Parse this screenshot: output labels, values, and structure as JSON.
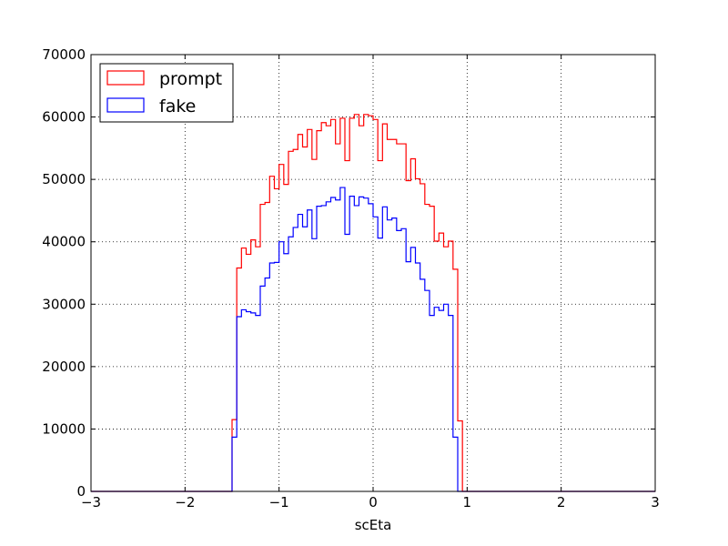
{
  "chart_data": {
    "type": "histogram",
    "xlabel": "scEta",
    "ylabel": "",
    "title": "",
    "xlim": [
      -3,
      3
    ],
    "ylim": [
      0,
      70000
    ],
    "xticks": [
      -3,
      -2,
      -1,
      0,
      1,
      2,
      3
    ],
    "xtick_labels": [
      "−3",
      "−2",
      "−1",
      "0",
      "1",
      "2",
      "3"
    ],
    "yticks": [
      0,
      10000,
      20000,
      30000,
      40000,
      50000,
      60000,
      70000
    ],
    "ytick_labels": [
      "0",
      "10000",
      "20000",
      "30000",
      "40000",
      "50000",
      "60000",
      "70000"
    ],
    "grid": true,
    "legend_position": "top-left",
    "bin_edges": [
      -3.0,
      -2.95,
      -2.9,
      -2.85,
      -2.8,
      -2.75,
      -2.7,
      -2.65,
      -2.6,
      -2.55,
      -2.5,
      -2.45,
      -2.4,
      -2.35,
      -2.3,
      -2.25,
      -2.2,
      -2.15,
      -2.1,
      -2.05,
      -2.0,
      -1.95,
      -1.9,
      -1.85,
      -1.8,
      -1.75,
      -1.7,
      -1.65,
      -1.6,
      -1.55,
      -1.5,
      -1.45,
      -1.4,
      -1.35,
      -1.3,
      -1.25,
      -1.2,
      -1.15,
      -1.1,
      -1.05,
      -1.0,
      -0.95,
      -0.9,
      -0.85,
      -0.8,
      -0.75,
      -0.7,
      -0.65,
      -0.6,
      -0.55,
      -0.5,
      -0.45,
      -0.4,
      -0.35,
      -0.3,
      -0.25,
      -0.2,
      -0.15,
      -0.1,
      -0.05,
      0.0,
      0.05,
      0.1,
      0.15,
      0.2,
      0.25,
      0.3,
      0.35,
      0.4,
      0.45,
      0.5,
      0.55,
      0.6,
      0.65,
      0.7,
      0.75,
      0.8,
      0.85,
      0.9,
      0.95,
      1.0,
      1.05,
      1.1,
      1.15,
      1.2,
      1.25,
      1.3,
      1.35,
      1.4,
      1.45,
      1.5,
      1.55,
      1.6,
      1.65,
      1.7,
      1.75,
      1.8,
      1.85,
      1.9,
      1.95,
      2.0,
      2.05,
      2.1,
      2.15,
      2.2,
      2.25,
      2.3,
      2.35,
      2.4,
      2.45,
      2.5,
      2.55,
      2.6,
      2.65,
      2.7,
      2.75,
      2.8,
      2.85,
      2.9,
      2.95,
      3.0
    ],
    "series": [
      {
        "name": "prompt",
        "color": "#ff0000",
        "values": [
          0,
          0,
          0,
          0,
          0,
          0,
          0,
          0,
          0,
          0,
          0,
          0,
          0,
          0,
          0,
          0,
          0,
          0,
          0,
          0,
          0,
          0,
          0,
          0,
          0,
          0,
          0,
          0,
          0,
          0,
          11500,
          35800,
          39000,
          38000,
          40300,
          39200,
          46000,
          46300,
          50500,
          48500,
          52400,
          49200,
          54500,
          54800,
          57200,
          55200,
          58000,
          53200,
          57800,
          59100,
          58600,
          59600,
          55700,
          59800,
          53000,
          59800,
          60400,
          58600,
          60400,
          60200,
          59600,
          53000,
          58900,
          56400,
          56400,
          55700,
          55700,
          49800,
          53300,
          50100,
          49300,
          46000,
          45700,
          40100,
          41400,
          39200,
          40100,
          35600,
          11300,
          0,
          0,
          0,
          0,
          0,
          0,
          0,
          0,
          0,
          0,
          0,
          0,
          0,
          0,
          0,
          0,
          0,
          0,
          0,
          0,
          0,
          0,
          0,
          0,
          0,
          0,
          0,
          0,
          0,
          0,
          0,
          0,
          0,
          0,
          0,
          0,
          0,
          0,
          0
        ]
      },
      {
        "name": "fake",
        "color": "#0000ff",
        "values": [
          0,
          0,
          0,
          0,
          0,
          0,
          0,
          0,
          0,
          0,
          0,
          0,
          0,
          0,
          0,
          0,
          0,
          0,
          0,
          0,
          0,
          0,
          0,
          0,
          0,
          0,
          0,
          0,
          0,
          0,
          8700,
          28000,
          29100,
          28800,
          28600,
          28200,
          32900,
          34200,
          36600,
          36700,
          40000,
          38100,
          40800,
          42300,
          44400,
          42400,
          45100,
          40500,
          45700,
          45800,
          46400,
          47100,
          46700,
          48700,
          41200,
          47300,
          45800,
          47200,
          47000,
          46100,
          44000,
          40600,
          45600,
          43500,
          43800,
          41800,
          42100,
          36800,
          39100,
          36600,
          34000,
          32200,
          28200,
          29500,
          29000,
          30000,
          28200,
          8700,
          0,
          0,
          0,
          0,
          0,
          0,
          0,
          0,
          0,
          0,
          0,
          0,
          0,
          0,
          0,
          0,
          0,
          0,
          0,
          0,
          0,
          0,
          0,
          0,
          0,
          0,
          0,
          0,
          0,
          0,
          0,
          0,
          0,
          0,
          0,
          0,
          0,
          0,
          0,
          0
        ]
      }
    ]
  }
}
